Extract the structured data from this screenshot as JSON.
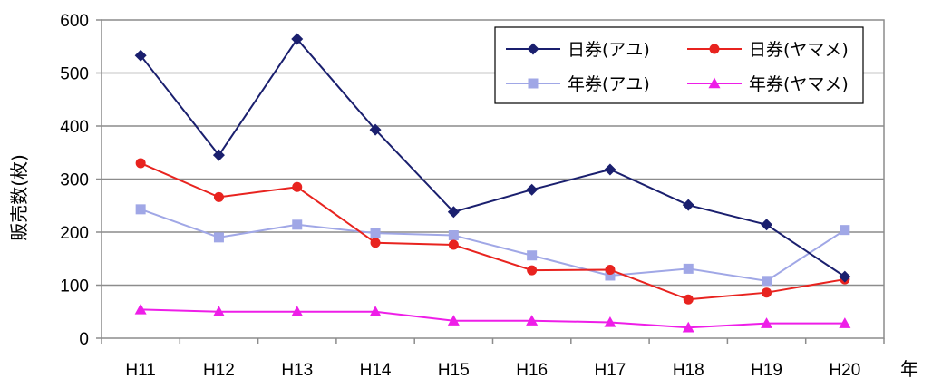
{
  "chart_data": {
    "type": "line",
    "x": [
      "H11",
      "H12",
      "H13",
      "H14",
      "H15",
      "H16",
      "H17",
      "H18",
      "H19",
      "H20"
    ],
    "ylabel": "販売数(枚)",
    "xlabel": "年",
    "ylim": [
      0,
      600
    ],
    "yticks": [
      0,
      100,
      200,
      300,
      400,
      500,
      600
    ],
    "grid": true,
    "legend_position": "top-right",
    "series": [
      {
        "name": "日券(アユ)",
        "color": "#1a1f6e",
        "marker": "diamond",
        "values": [
          533,
          345,
          564,
          393,
          238,
          280,
          318,
          251,
          214,
          116
        ]
      },
      {
        "name": "日券(ヤマメ)",
        "color": "#e8231f",
        "marker": "circle",
        "values": [
          330,
          266,
          285,
          180,
          176,
          128,
          129,
          73,
          86,
          111
        ]
      },
      {
        "name": "年券(アユ)",
        "color": "#a0a7e6",
        "marker": "square",
        "values": [
          243,
          190,
          214,
          198,
          194,
          156,
          118,
          131,
          108,
          204
        ]
      },
      {
        "name": "年券(ヤマメ)",
        "color": "#ee1ee8",
        "marker": "triangle",
        "values": [
          54,
          50,
          50,
          50,
          33,
          33,
          30,
          20,
          28,
          28
        ]
      }
    ]
  }
}
